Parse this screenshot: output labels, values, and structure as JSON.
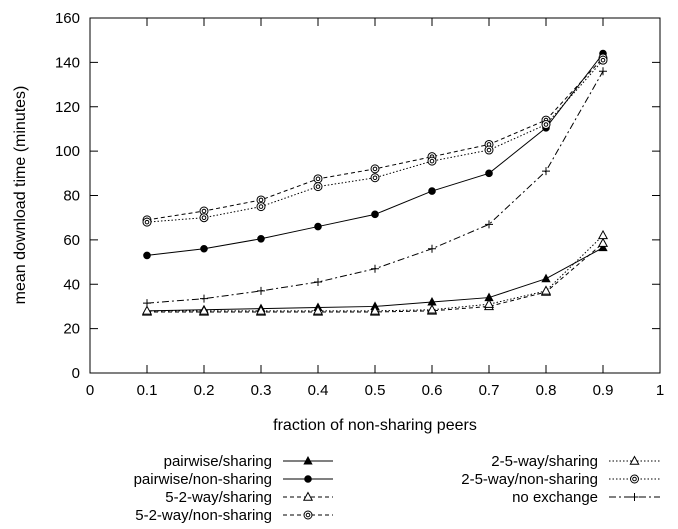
{
  "chart_data": {
    "type": "line",
    "title": "",
    "xlabel": "fraction of non-sharing peers",
    "ylabel": "mean download time (minutes)",
    "xlim": [
      0,
      1
    ],
    "ylim": [
      0,
      160
    ],
    "x_ticks": [
      "0",
      "0.1",
      "0.2",
      "0.3",
      "0.4",
      "0.5",
      "0.6",
      "0.7",
      "0.8",
      "0.9",
      "1"
    ],
    "y_ticks": [
      "0",
      "20",
      "40",
      "60",
      "80",
      "100",
      "120",
      "140",
      "160"
    ],
    "grid": false,
    "legend_position": "bottom",
    "x": [
      0.1,
      0.2,
      0.3,
      0.4,
      0.5,
      0.6,
      0.7,
      0.8,
      0.9
    ],
    "series": [
      {
        "name": "pairwise/sharing",
        "style": "solid",
        "marker": "filled-triangle",
        "values": [
          28,
          28.5,
          29,
          29.5,
          30,
          32,
          34,
          42.5,
          56.5
        ]
      },
      {
        "name": "pairwise/non-sharing",
        "style": "solid",
        "marker": "filled-circle",
        "values": [
          53,
          56,
          60.5,
          66,
          71.5,
          82,
          90,
          110.5,
          144
        ]
      },
      {
        "name": "5-2-way/sharing",
        "style": "dashed",
        "marker": "open-triangle",
        "values": [
          27.5,
          27.5,
          27.5,
          27.5,
          27.5,
          28,
          30,
          36.5,
          58.5
        ]
      },
      {
        "name": "5-2-way/non-sharing",
        "style": "dashed",
        "marker": "open-circle",
        "values": [
          69,
          73,
          78,
          87.5,
          92,
          97.5,
          103,
          114,
          142
        ]
      },
      {
        "name": "2-5-way/sharing",
        "style": "dotted",
        "marker": "open-triangle",
        "values": [
          28,
          28,
          28,
          28,
          28,
          28.5,
          31,
          37,
          62
        ]
      },
      {
        "name": "2-5-way/non-sharing",
        "style": "dotted",
        "marker": "open-circle",
        "values": [
          68,
          70,
          75,
          84,
          88,
          95.5,
          100.5,
          112,
          141
        ]
      },
      {
        "name": "no exchange",
        "style": "dashdot",
        "marker": "plus",
        "values": [
          31.5,
          33.5,
          37,
          41,
          47,
          56,
          67,
          91,
          136
        ]
      }
    ]
  }
}
